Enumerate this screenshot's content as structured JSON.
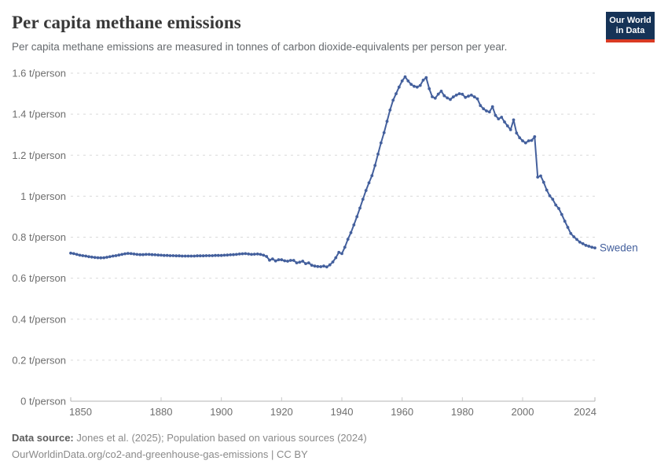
{
  "header": {
    "title": "Per capita methane emissions",
    "subtitle": "Per capita methane emissions are measured in tonnes of carbon dioxide-equivalents per person per year.",
    "logo": {
      "line1": "Our World",
      "line2": "in Data",
      "bg_color": "#163357",
      "accent_color": "#d93a23"
    }
  },
  "footer": {
    "source_label": "Data source:",
    "source_text": " Jones et al. (2025); Population based on various sources (2024)",
    "link_line": "OurWorldinData.org/co2-and-greenhouse-gas-emissions | CC BY"
  },
  "chart_data": {
    "type": "line",
    "title": "Per capita methane emissions",
    "unit": "t/person",
    "entity": "Sweden",
    "line_color": "#44609d",
    "grid": "horizontal dashed",
    "legend_position": "end-of-line label",
    "xlim": [
      1850,
      2024
    ],
    "ylim": [
      0,
      1.6
    ],
    "x_ticks": [
      1850,
      1880,
      1900,
      1920,
      1940,
      1960,
      1980,
      2000,
      2024
    ],
    "y_ticks": [
      {
        "v": 0,
        "label": "0 t/person"
      },
      {
        "v": 0.2,
        "label": "0.2 t/person"
      },
      {
        "v": 0.4,
        "label": "0.4 t/person"
      },
      {
        "v": 0.6,
        "label": "0.6 t/person"
      },
      {
        "v": 0.8,
        "label": "0.8 t/person"
      },
      {
        "v": 1,
        "label": "1 t/person"
      },
      {
        "v": 1.2,
        "label": "1.2 t/person"
      },
      {
        "v": 1.4,
        "label": "1.4 t/person"
      },
      {
        "v": 1.6,
        "label": "1.6 t/person"
      }
    ],
    "series": [
      {
        "name": "Sweden",
        "x_start_year": 1850,
        "x_end_year": 2024,
        "frequency": "annual",
        "values": [
          0.722,
          0.72,
          0.716,
          0.712,
          0.71,
          0.708,
          0.705,
          0.703,
          0.701,
          0.7,
          0.699,
          0.7,
          0.702,
          0.705,
          0.708,
          0.71,
          0.713,
          0.716,
          0.719,
          0.721,
          0.72,
          0.718,
          0.716,
          0.715,
          0.715,
          0.716,
          0.716,
          0.715,
          0.714,
          0.713,
          0.712,
          0.711,
          0.711,
          0.71,
          0.71,
          0.709,
          0.709,
          0.708,
          0.708,
          0.708,
          0.708,
          0.708,
          0.709,
          0.709,
          0.709,
          0.71,
          0.71,
          0.71,
          0.711,
          0.711,
          0.711,
          0.712,
          0.713,
          0.714,
          0.715,
          0.716,
          0.718,
          0.719,
          0.72,
          0.718,
          0.716,
          0.717,
          0.718,
          0.716,
          0.712,
          0.706,
          0.688,
          0.694,
          0.684,
          0.69,
          0.69,
          0.685,
          0.683,
          0.687,
          0.687,
          0.675,
          0.678,
          0.683,
          0.671,
          0.675,
          0.663,
          0.659,
          0.657,
          0.656,
          0.659,
          0.655,
          0.665,
          0.679,
          0.7,
          0.726,
          0.72,
          0.751,
          0.79,
          0.822,
          0.86,
          0.9,
          0.942,
          0.985,
          1.028,
          1.065,
          1.1,
          1.15,
          1.205,
          1.26,
          1.31,
          1.365,
          1.42,
          1.468,
          1.5,
          1.532,
          1.562,
          1.582,
          1.562,
          1.545,
          1.536,
          1.532,
          1.54,
          1.566,
          1.578,
          1.524,
          1.485,
          1.478,
          1.498,
          1.512,
          1.49,
          1.479,
          1.472,
          1.484,
          1.493,
          1.5,
          1.497,
          1.482,
          1.488,
          1.493,
          1.484,
          1.475,
          1.442,
          1.426,
          1.416,
          1.411,
          1.436,
          1.394,
          1.377,
          1.385,
          1.362,
          1.343,
          1.324,
          1.372,
          1.308,
          1.285,
          1.27,
          1.26,
          1.27,
          1.272,
          1.29,
          1.093,
          1.099,
          1.068,
          1.03,
          1.002,
          0.985,
          0.957,
          0.94,
          0.911,
          0.878,
          0.848,
          0.818,
          0.802,
          0.789,
          0.776,
          0.768,
          0.76,
          0.756,
          0.751,
          0.748
        ]
      }
    ]
  }
}
